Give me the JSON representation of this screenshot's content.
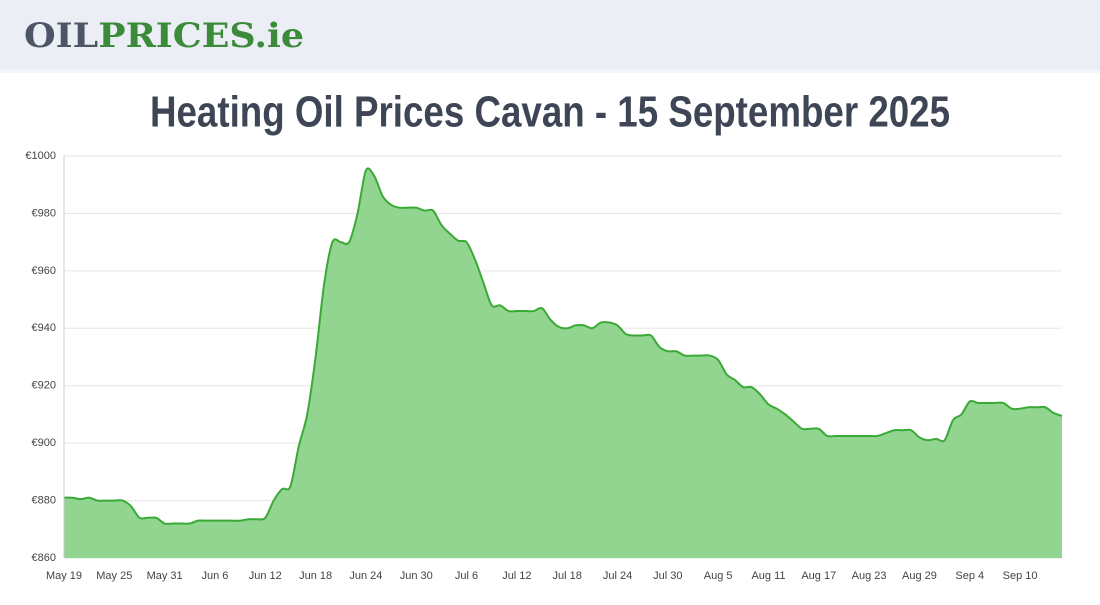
{
  "header": {
    "logo": [
      "OIL",
      "PRICES",
      ".ie"
    ]
  },
  "chart_data": {
    "type": "area",
    "title": "Heating Oil Prices Cavan - 15 September 2025",
    "categories": [
      "May 19",
      null,
      null,
      null,
      null,
      null,
      "May 25",
      null,
      null,
      null,
      null,
      null,
      "May 31",
      null,
      null,
      null,
      null,
      null,
      "Jun 6",
      null,
      null,
      null,
      null,
      null,
      "Jun 12",
      null,
      null,
      null,
      null,
      null,
      "Jun 18",
      null,
      null,
      null,
      null,
      null,
      "Jun 24",
      null,
      null,
      null,
      null,
      null,
      "Jun 30",
      null,
      null,
      null,
      null,
      null,
      "Jul 6",
      null,
      null,
      null,
      null,
      null,
      "Jul 12",
      null,
      null,
      null,
      null,
      null,
      "Jul 18",
      null,
      null,
      null,
      null,
      null,
      "Jul 24",
      null,
      null,
      null,
      null,
      null,
      "Jul 30",
      null,
      null,
      null,
      null,
      null,
      "Aug 5",
      null,
      null,
      null,
      null,
      null,
      "Aug 11",
      null,
      null,
      null,
      null,
      null,
      "Aug 17",
      null,
      null,
      null,
      null,
      null,
      "Aug 23",
      null,
      null,
      null,
      null,
      null,
      "Aug 29",
      null,
      null,
      null,
      null,
      null,
      "Sep 4",
      null,
      null,
      null,
      null,
      null,
      "Sep 10",
      null,
      null,
      null,
      null,
      null
    ],
    "values": [
      881,
      881,
      880.5,
      881,
      880,
      880,
      880,
      880,
      878,
      874,
      874,
      874,
      872,
      872,
      872,
      872,
      873,
      873,
      873,
      873,
      873,
      873,
      873.5,
      873.5,
      874,
      880,
      884,
      885,
      899,
      910,
      930,
      955,
      970,
      970,
      970,
      980,
      995,
      993,
      986,
      983,
      982,
      982,
      982,
      981,
      981,
      976,
      973,
      970.5,
      970,
      964,
      956,
      948,
      948,
      946,
      946,
      946,
      946,
      947,
      943,
      940.5,
      940,
      941,
      941,
      940,
      942,
      942,
      941,
      938,
      937.5,
      937.5,
      937.5,
      933.5,
      932,
      932,
      930.5,
      930.5,
      930.5,
      930.5,
      929,
      924,
      922,
      919.5,
      919.5,
      917,
      913.5,
      912,
      910,
      907.5,
      905,
      905,
      905,
      902.5,
      902.5,
      902.5,
      902.5,
      902.5,
      902.5,
      902.5,
      903.5,
      904.5,
      904.5,
      904.5,
      902,
      901,
      901.5,
      901,
      908,
      910,
      914.5,
      914,
      914,
      914,
      914,
      912,
      912,
      912.5,
      912.5,
      912.5,
      910.5,
      909.5
    ],
    "color": "#3aaa35",
    "fill_color": "#91d590",
    "ylim": [
      860,
      1000
    ],
    "yticks": [
      {
        "value": 860,
        "label": "€860"
      },
      {
        "value": 880,
        "label": "€880"
      },
      {
        "value": 900,
        "label": "€900"
      },
      {
        "value": 920,
        "label": "€920"
      },
      {
        "value": 940,
        "label": "€940"
      },
      {
        "value": 960,
        "label": "€960"
      },
      {
        "value": 980,
        "label": "€980"
      },
      {
        "value": 1000,
        "label": "€1000"
      }
    ],
    "grid": true
  }
}
